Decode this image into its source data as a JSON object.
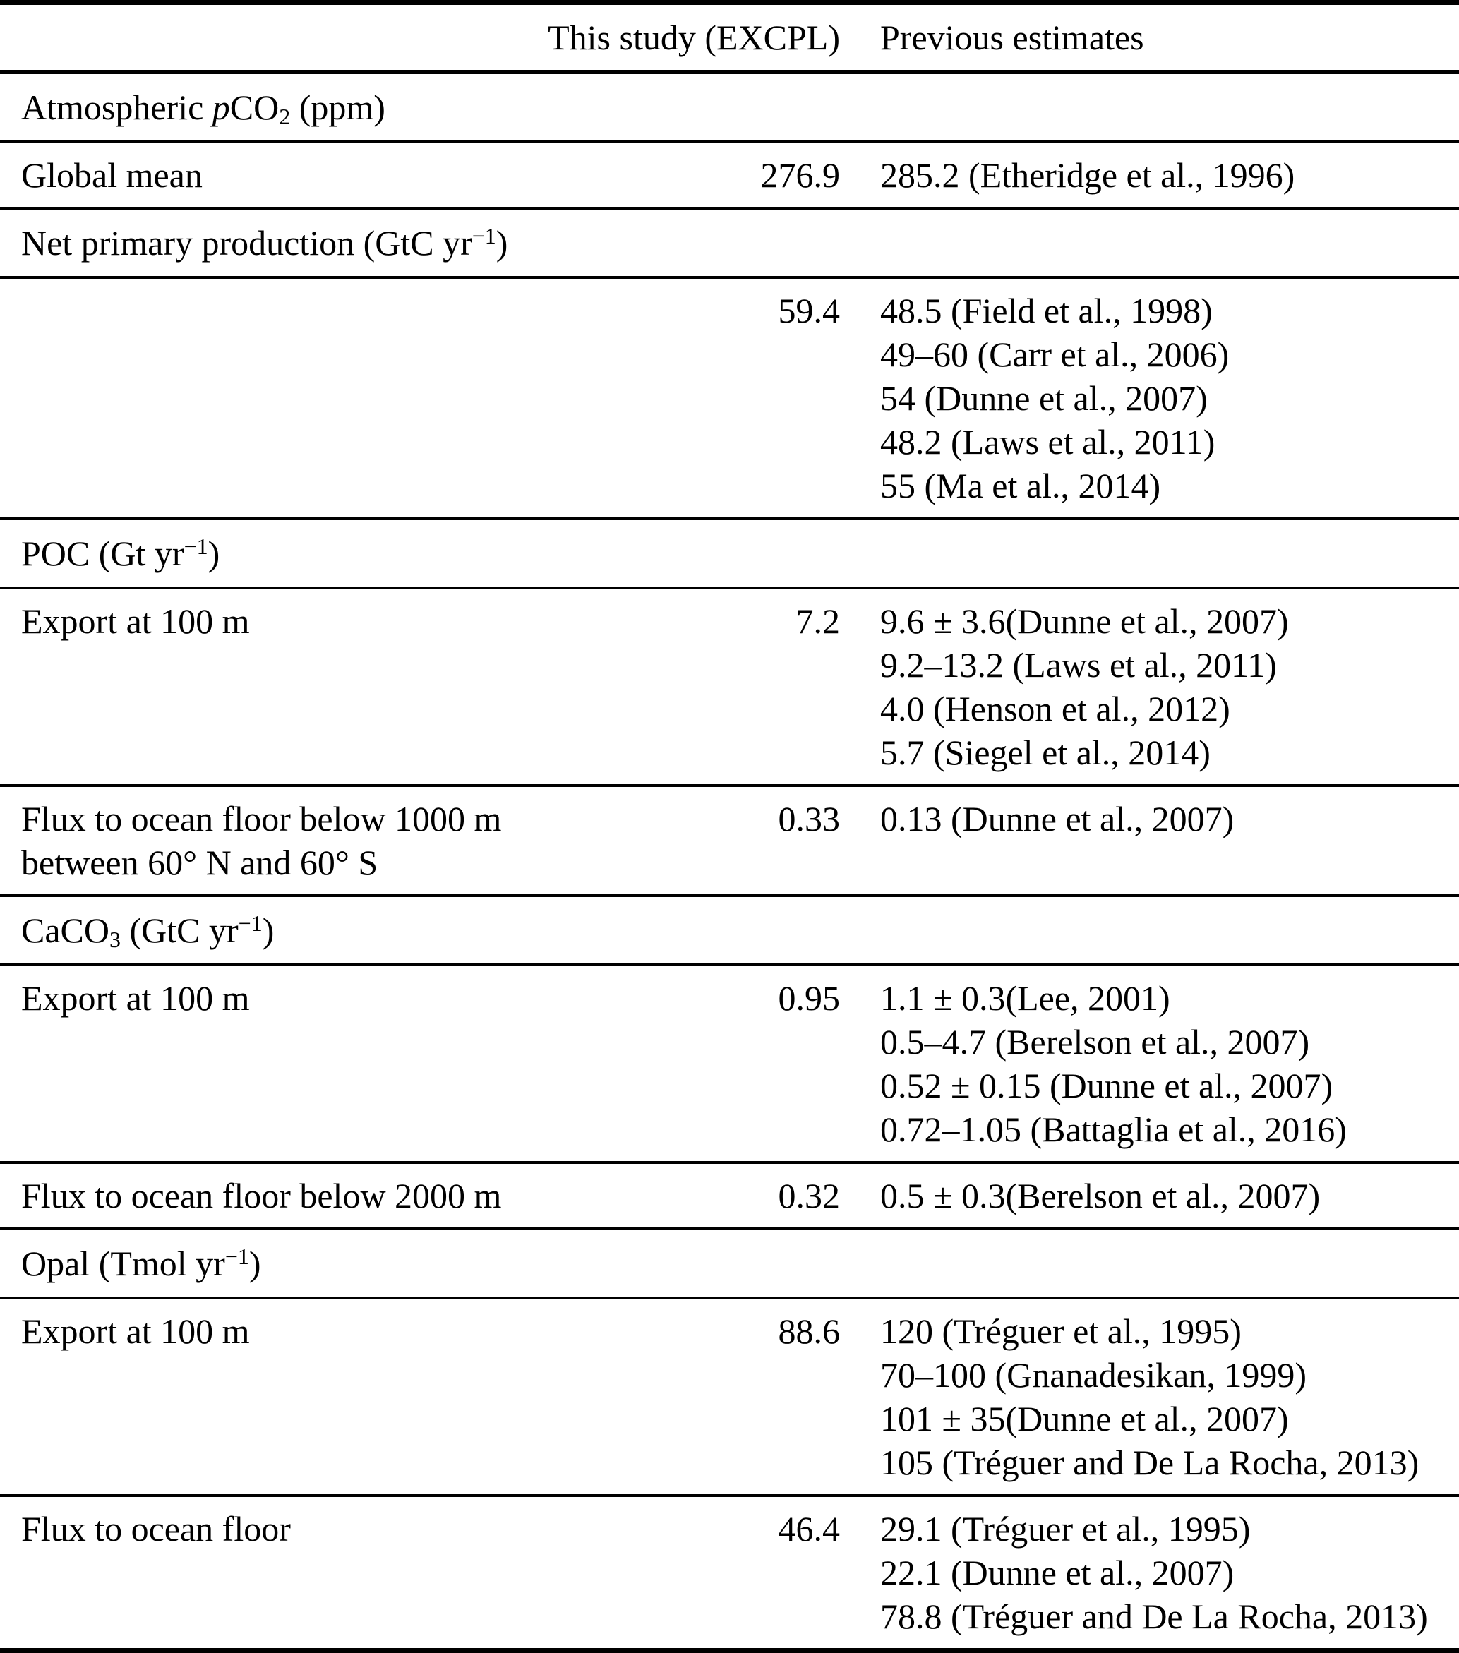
{
  "page": {
    "background_color": "#ffffff",
    "text_color": "#000000"
  },
  "table": {
    "columns": [
      {
        "label": ""
      },
      {
        "label": "This study (EXCPL)"
      },
      {
        "label": "Previous estimates"
      }
    ],
    "sections": [
      {
        "name": "atmospheric-pco2",
        "header_parts": [
          {
            "text": "Atmospheric "
          },
          {
            "text": "p",
            "italic": true
          },
          {
            "text": "CO"
          },
          {
            "text": "2",
            "sub": true
          },
          {
            "text": " (ppm)"
          }
        ],
        "rows": [
          {
            "name": "global-mean",
            "label_parts": [
              {
                "text": "Global mean"
              }
            ],
            "this_study": "276.9",
            "previous": [
              "285.2 (Etheridge et al., 1996)"
            ]
          }
        ]
      },
      {
        "name": "net-primary-production",
        "header_parts": [
          {
            "text": "Net primary production (GtC yr"
          },
          {
            "text": "−1",
            "sup": true
          },
          {
            "text": ")"
          }
        ],
        "rows": [
          {
            "name": "npp-global",
            "label_parts": [],
            "this_study": "59.4",
            "previous": [
              "48.5 (Field et al., 1998)",
              "49–60 (Carr et al., 2006)",
              "54 (Dunne et al., 2007)",
              "48.2 (Laws et al., 2011)",
              "55 (Ma et al., 2014)"
            ]
          }
        ]
      },
      {
        "name": "poc",
        "header_parts": [
          {
            "text": "POC (Gt yr"
          },
          {
            "text": "−1",
            "sup": true
          },
          {
            "text": ")"
          }
        ],
        "rows": [
          {
            "name": "poc-export-100m",
            "label_parts": [
              {
                "text": "Export at 100 m"
              }
            ],
            "this_study": "7.2",
            "previous": [
              "9.6 ± 3.6(Dunne et al., 2007)",
              "9.2–13.2 (Laws et al., 2011)",
              "4.0 (Henson et al., 2012)",
              "5.7 (Siegel et al., 2014)"
            ]
          },
          {
            "name": "poc-flux-below-1000m",
            "label_parts": [
              {
                "text": "Flux to ocean floor below 1000 m"
              },
              {
                "br": true
              },
              {
                "text": "between 60° N and 60° S"
              }
            ],
            "this_study": "0.33",
            "previous": [
              "0.13 (Dunne et al., 2007)"
            ]
          }
        ]
      },
      {
        "name": "caco3",
        "header_parts": [
          {
            "text": "CaCO"
          },
          {
            "text": "3",
            "sub": true
          },
          {
            "text": " (GtC yr"
          },
          {
            "text": "−1",
            "sup": true
          },
          {
            "text": ")"
          }
        ],
        "rows": [
          {
            "name": "caco3-export-100m",
            "label_parts": [
              {
                "text": "Export at 100 m"
              }
            ],
            "this_study": "0.95",
            "previous": [
              "1.1 ± 0.3(Lee, 2001)",
              "0.5–4.7 (Berelson et al., 2007)",
              "0.52 ± 0.15 (Dunne et al., 2007)",
              "0.72–1.05 (Battaglia et al., 2016)"
            ]
          },
          {
            "name": "caco3-flux-below-2000m",
            "label_parts": [
              {
                "text": "Flux to ocean floor below 2000 m"
              }
            ],
            "this_study": "0.32",
            "previous": [
              "0.5 ± 0.3(Berelson et al., 2007)"
            ]
          }
        ]
      },
      {
        "name": "opal",
        "header_parts": [
          {
            "text": "Opal (Tmol yr"
          },
          {
            "text": "−1",
            "sup": true
          },
          {
            "text": ")"
          }
        ],
        "rows": [
          {
            "name": "opal-export-100m",
            "label_parts": [
              {
                "text": "Export at 100 m"
              }
            ],
            "this_study": "88.6",
            "previous": [
              "120 (Tréguer et al., 1995)",
              "70–100 (Gnanadesikan, 1999)",
              "101 ± 35(Dunne et al., 2007)",
              "105 (Tréguer and De La Rocha, 2013)"
            ]
          },
          {
            "name": "opal-flux-ocean-floor",
            "label_parts": [
              {
                "text": "Flux to ocean floor"
              }
            ],
            "this_study": "46.4",
            "previous": [
              "29.1 (Tréguer et al., 1995)",
              "22.1 (Dunne et al., 2007)",
              "78.8 (Tréguer and De La Rocha, 2013)"
            ]
          }
        ]
      }
    ]
  }
}
